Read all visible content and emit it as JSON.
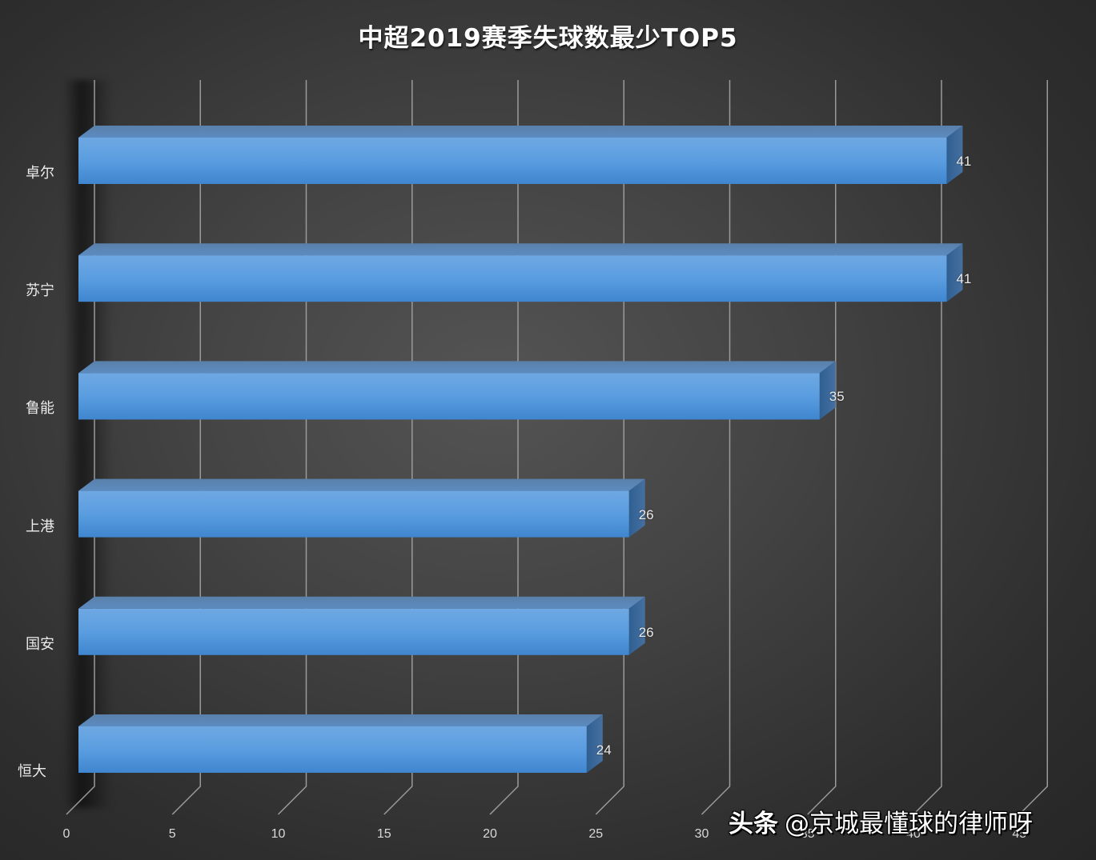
{
  "chart_data": {
    "type": "bar",
    "orientation": "horizontal",
    "style": "3d-clustered",
    "title": "中超2019赛季失球数最少TOP5",
    "categories": [
      "卓尔",
      "苏宁",
      "鲁能",
      "上港",
      "国安",
      "恒大"
    ],
    "values": [
      41,
      41,
      35,
      26,
      26,
      24
    ],
    "data_labels": [
      "41",
      "41",
      "35",
      "26",
      "26",
      "24"
    ],
    "xlabel": "",
    "ylabel": "",
    "xlim": [
      0,
      45
    ],
    "x_ticks": [
      "0",
      "5",
      "10",
      "15",
      "20",
      "25",
      "30",
      "35",
      "40",
      "45"
    ],
    "grid": true,
    "legend": null,
    "colors": {
      "bar": "#5b9bd5",
      "bar_top": "#5a85b5",
      "bar_side": "#3c6ea3",
      "background": "#3a3a3a"
    }
  },
  "watermark": {
    "platform": "头条",
    "author": "@京城最懂球的律师呀"
  }
}
